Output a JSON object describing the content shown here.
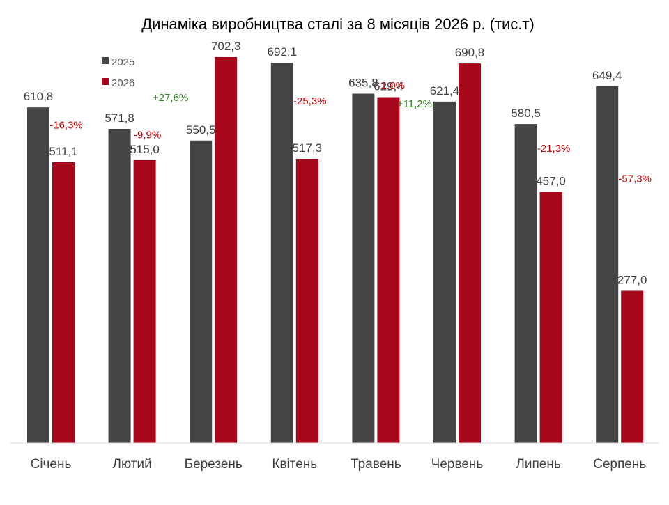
{
  "chart_data": {
    "type": "bar",
    "title": "Динаміка виробництва сталі за 8 місяців 2026 р. (тис.т)",
    "categories": [
      "Січень",
      "Лютий",
      "Березень",
      "Квітень",
      "Травень",
      "Червень",
      "Липень",
      "Серпень"
    ],
    "series": [
      {
        "name": "2025",
        "color": "#454547",
        "values": [
          610.8,
          571.8,
          550.5,
          692.1,
          635.8,
          621.4,
          580.5,
          649.4
        ],
        "labels": [
          "610,8",
          "571,8",
          "550,5",
          "692,1",
          "635,8",
          "621,4",
          "580,5",
          "649,4"
        ]
      },
      {
        "name": "2026",
        "color": "#A6071B",
        "values": [
          511.1,
          515.0,
          702.3,
          517.3,
          629.4,
          690.8,
          457.0,
          277.0
        ],
        "labels": [
          "511,1",
          "515,0",
          "702,3",
          "517,3",
          "629,4",
          "690,8",
          "457,0",
          "277,0"
        ]
      }
    ],
    "changes": [
      "-16,3%",
      "-9,9%",
      "+27,6%",
      "-25,3%",
      "-1,0%",
      "+11,2%",
      "-21,3%",
      "-57,3%"
    ],
    "change_colors": {
      "positive": "#2E7D1E",
      "negative": "#C00000"
    },
    "ylim": [
      0,
      750
    ],
    "xlabel": "",
    "ylabel": "",
    "grid": false,
    "legend_position": "top-left"
  }
}
